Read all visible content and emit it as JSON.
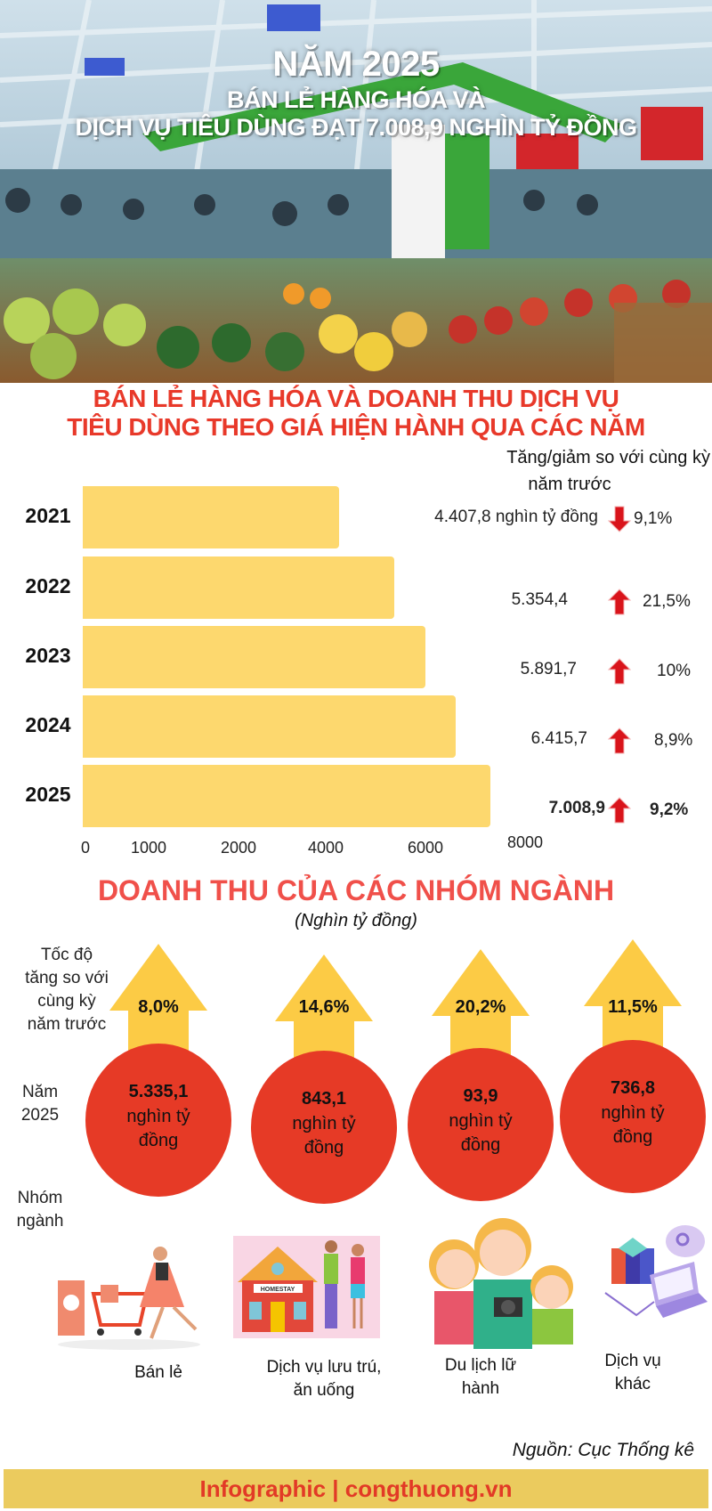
{
  "hero": {
    "line1": "NĂM 2025",
    "line2": "BÁN LẺ HÀNG HÓA VÀ",
    "line3": "DỊCH VỤ TIÊU DÙNG ĐẠT 7.008,9 NGHÌN TỶ ĐỒNG"
  },
  "section1": {
    "title_line1": "BÁN LẺ HÀNG HÓA VÀ DOANH THU DỊCH VỤ",
    "title_line2": "TIÊU DÙNG THEO GIÁ HIỆN HÀNH QUA CÁC NĂM",
    "change_header_line1": "Tăng/giảm so với cùng kỳ",
    "change_header_line2": "năm trước"
  },
  "chart_data": {
    "type": "bar",
    "orientation": "horizontal",
    "categories": [
      "2021",
      "2022",
      "2023",
      "2024",
      "2025"
    ],
    "values": [
      4407.8,
      5354.4,
      5891.7,
      6415.7,
      7008.9
    ],
    "value_labels": [
      "4.407,8 nghìn tỷ đồng",
      "5.354,4",
      "5.891,7",
      "6.415,7",
      "7.008,9"
    ],
    "change_labels": [
      "9,1%",
      "21,5%",
      "10%",
      "8,9%",
      "9,2%"
    ],
    "change_direction": [
      "down",
      "up",
      "up",
      "up",
      "up"
    ],
    "x_ticks": [
      "0",
      "1000",
      "2000",
      "4000",
      "6000",
      "8000"
    ],
    "xlim": [
      0,
      8000
    ],
    "grid": false,
    "bar_color": "#fdd86e",
    "arrow_color": "#d9141b"
  },
  "section2": {
    "title": "DOANH THU CỦA CÁC NHÓM NGÀNH",
    "subtitle": "(Nghìn tỷ đồng)",
    "row_label_growth": [
      "Tốc độ",
      "tăng so với",
      "cùng kỳ",
      "năm trước"
    ],
    "row_label_year": [
      "Năm",
      "2025"
    ],
    "row_label_group": [
      "Nhóm",
      "ngành"
    ],
    "unit_line1": "nghìn tỷ",
    "unit_line2": "đồng",
    "groups": [
      {
        "growth": "8,0%",
        "value": "5.335,1",
        "name_lines": [
          "Bán lẻ"
        ],
        "icon": "shopping-cart-illustration"
      },
      {
        "growth": "14,6%",
        "value": "843,1",
        "name_lines": [
          "Dịch vụ lưu trú,",
          "ăn uống"
        ],
        "icon": "homestay-illustration",
        "sign": "HOMESTAY"
      },
      {
        "growth": "20,2%",
        "value": "93,9",
        "name_lines": [
          "Du lịch lữ",
          "hành"
        ],
        "icon": "tourist-family-illustration"
      },
      {
        "growth": "11,5%",
        "value": "736,8",
        "name_lines": [
          "Dịch vụ",
          "khác"
        ],
        "icon": "server-laptop-illustration"
      }
    ],
    "arrow_color": "#fccb45",
    "circle_color": "#e63a26"
  },
  "source": "Nguồn: Cục Thống kê",
  "footer": "Infographic | congthuong.vn"
}
